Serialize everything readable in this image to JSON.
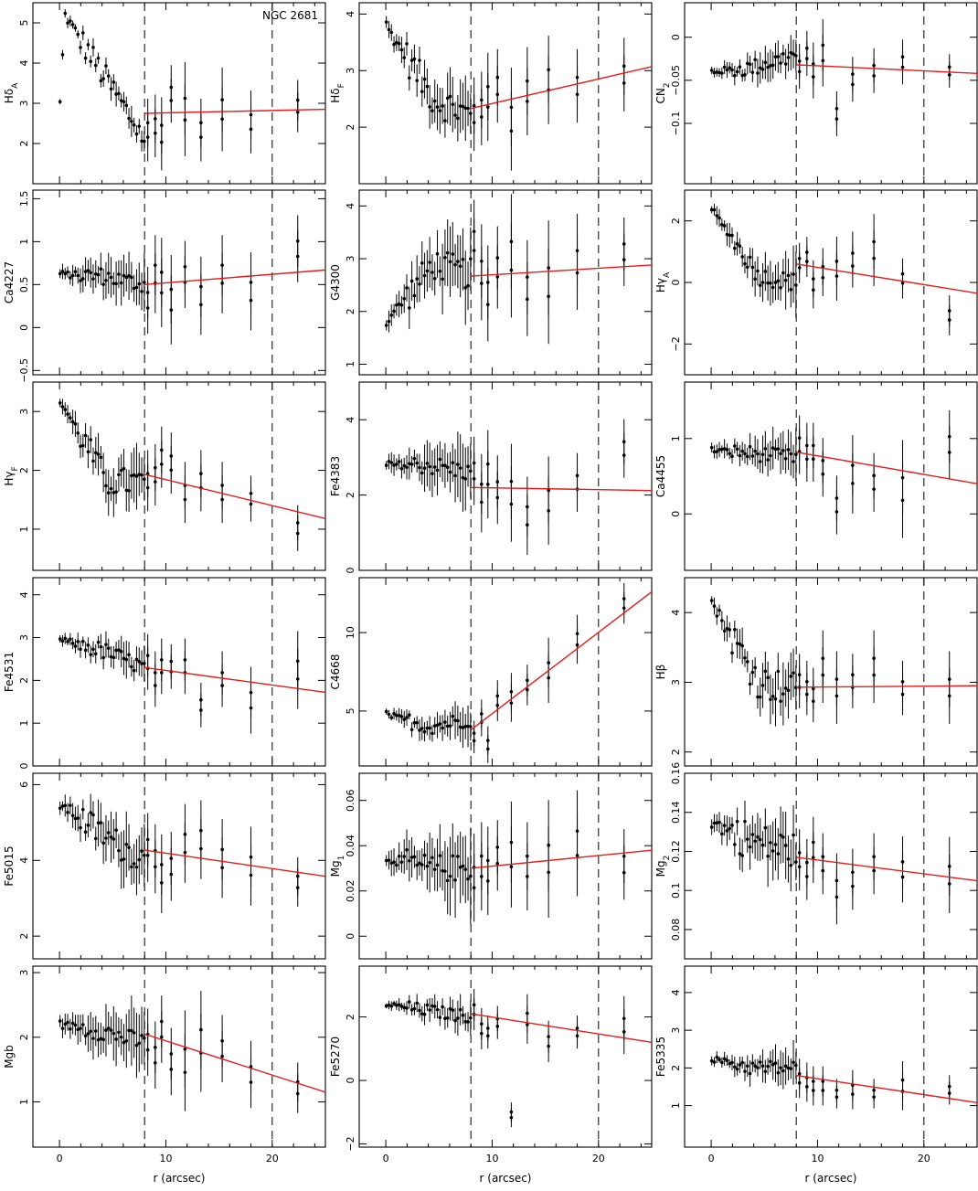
{
  "figure": {
    "object": "NGC 2681",
    "xlabel": "r (arcsec)",
    "xlim": [
      -2.5,
      25
    ],
    "xticks": [
      0,
      10,
      20
    ],
    "vlines": [
      8,
      20
    ],
    "colors": {
      "fit": "#e41a1c",
      "points": "#000000"
    }
  },
  "chart_data": [
    {
      "type": "scatter",
      "index": "Hδ_A",
      "ylabel": "HδA",
      "ylim": [
        1,
        5.5
      ],
      "yticks": [
        2,
        3,
        4,
        5
      ],
      "fit": {
        "x": [
          8,
          25
        ],
        "y": [
          2.75,
          2.85
        ]
      },
      "inner": {
        "start": 2.75,
        "mid": 5.2,
        "end": 2.1,
        "mid_r": 0.0,
        "noise": 0.35,
        "err": 0.25
      },
      "outer": {
        "r": [
          8.3,
          9,
          9.6,
          10.5,
          11.8,
          13.3,
          15.3,
          18,
          22.4
        ],
        "y": [
          2.3,
          2.4,
          2.2,
          3.2,
          2.8,
          2.3,
          2.8,
          2.5,
          2.9
        ],
        "e": [
          0.6,
          0.6,
          0.7,
          0.55,
          0.9,
          0.6,
          0.8,
          0.6,
          0.5
        ]
      }
    },
    {
      "type": "scatter",
      "index": "Hδ_F",
      "ylabel": "HδF",
      "ylim": [
        1,
        4.2
      ],
      "yticks": [
        2,
        3,
        4
      ],
      "fit": {
        "x": [
          8,
          25
        ],
        "y": [
          2.33,
          3.07
        ]
      },
      "inner": {
        "start": 3.8,
        "mid": 2.5,
        "end": 2.2,
        "mid_r": 4.5,
        "noise": 0.3,
        "err": 0.35
      },
      "outer": {
        "r": [
          8.3,
          9,
          9.6,
          10.5,
          11.8,
          13.3,
          15.3,
          18,
          22.4
        ],
        "y": [
          2.2,
          2.3,
          2.5,
          2.7,
          2.1,
          2.6,
          2.8,
          2.7,
          2.9
        ],
        "e": [
          0.5,
          0.5,
          0.6,
          0.5,
          0.7,
          0.6,
          0.6,
          0.5,
          0.5
        ]
      }
    },
    {
      "type": "scatter",
      "index": "CN_2",
      "ylabel": "CN2",
      "ylim": [
        -0.17,
        0.04
      ],
      "yticks": [
        -0.1,
        -0.05,
        0
      ],
      "fit": {
        "x": [
          8,
          25
        ],
        "y": [
          -0.032,
          -0.042
        ]
      },
      "inner": {
        "start": -0.04,
        "mid": -0.035,
        "end": -0.02,
        "mid_r": 4,
        "noise": 0.01,
        "err": 0.015
      },
      "outer": {
        "r": [
          8.3,
          9,
          9.6,
          10.5,
          11.8,
          13.3,
          15.3,
          18,
          22.4
        ],
        "y": [
          -0.035,
          -0.02,
          -0.04,
          -0.02,
          -0.09,
          -0.05,
          -0.04,
          -0.03,
          -0.04
        ],
        "e": [
          0.02,
          0.02,
          0.025,
          0.03,
          0.02,
          0.02,
          0.02,
          0.02,
          0.015
        ]
      }
    },
    {
      "type": "scatter",
      "index": "Ca4227",
      "ylabel": "Ca4227",
      "ylim": [
        -0.55,
        1.6
      ],
      "yticks": [
        -0.5,
        0,
        0.5,
        1,
        1.5
      ],
      "fit": {
        "x": [
          8,
          25
        ],
        "y": [
          0.5,
          0.67
        ]
      },
      "inner": {
        "start": 0.62,
        "mid": 0.6,
        "end": 0.5,
        "mid_r": 4,
        "noise": 0.1,
        "err": 0.2
      },
      "outer": {
        "r": [
          8.3,
          9,
          9.6,
          10.5,
          11.8,
          13.3,
          15.3,
          18,
          22.4
        ],
        "y": [
          0.3,
          0.6,
          0.5,
          0.3,
          0.6,
          0.35,
          0.6,
          0.4,
          0.9
        ],
        "e": [
          0.3,
          0.35,
          0.4,
          0.4,
          0.3,
          0.35,
          0.35,
          0.35,
          0.3
        ]
      }
    },
    {
      "type": "scatter",
      "index": "G4300",
      "ylabel": "G4300",
      "ylim": [
        0.8,
        4.3
      ],
      "yticks": [
        1,
        2,
        3,
        4
      ],
      "fit": {
        "x": [
          8,
          25
        ],
        "y": [
          2.67,
          2.88
        ]
      },
      "inner": {
        "start": 1.8,
        "mid": 2.9,
        "end": 2.7,
        "mid_r": 4.5,
        "noise": 0.3,
        "err": 0.5
      },
      "outer": {
        "r": [
          8.3,
          9,
          9.6,
          10.5,
          11.8,
          13.3,
          15.3,
          18,
          22.4
        ],
        "y": [
          3.3,
          2.7,
          2.3,
          2.8,
          3.0,
          2.4,
          2.5,
          2.9,
          3.1
        ],
        "e": [
          0.6,
          0.7,
          0.7,
          0.6,
          0.9,
          0.7,
          0.9,
          0.7,
          0.5
        ]
      }
    },
    {
      "type": "scatter",
      "index": "Hγ_A",
      "ylabel": "HγA",
      "ylim": [
        -3,
        3
      ],
      "yticks": [
        -2,
        0,
        2
      ],
      "fit": {
        "x": [
          8,
          25
        ],
        "y": [
          0.6,
          -0.35
        ]
      },
      "inner": {
        "start": 2.4,
        "mid": 0.2,
        "end": 0.0,
        "mid_r": 4.5,
        "noise": 0.3,
        "err": 0.6
      },
      "outer": {
        "r": [
          8.3,
          9,
          9.6,
          10.5,
          11.8,
          13.3,
          15.3,
          18,
          22.4
        ],
        "y": [
          0.6,
          0.8,
          -0.1,
          0.3,
          0.4,
          0.7,
          1.0,
          0.1,
          -1.1
        ],
        "e": [
          0.5,
          0.5,
          0.6,
          0.6,
          0.8,
          0.7,
          0.9,
          0.5,
          0.5
        ]
      }
    },
    {
      "type": "scatter",
      "index": "Hγ_F",
      "ylabel": "HγF",
      "ylim": [
        0.3,
        3.5
      ],
      "yticks": [
        1,
        2,
        3
      ],
      "fit": {
        "x": [
          8,
          25
        ],
        "y": [
          1.93,
          1.18
        ]
      },
      "inner": {
        "start": 3.2,
        "mid": 1.8,
        "end": 1.8,
        "mid_r": 4.5,
        "noise": 0.25,
        "err": 0.35
      },
      "outer": {
        "r": [
          8.3,
          9,
          9.6,
          10.5,
          11.8,
          13.3,
          15.3,
          18,
          22.4
        ],
        "y": [
          1.8,
          1.9,
          2.2,
          2.1,
          1.6,
          1.8,
          1.6,
          1.5,
          1.0
        ],
        "e": [
          0.4,
          0.4,
          0.4,
          0.4,
          0.4,
          0.4,
          0.4,
          0.3,
          0.3
        ]
      }
    },
    {
      "type": "scatter",
      "index": "Fe4383",
      "ylabel": "Fe4383",
      "ylim": [
        0,
        5
      ],
      "yticks": [
        0,
        2,
        4
      ],
      "fit": {
        "x": [
          8,
          25
        ],
        "y": [
          2.2,
          2.12
        ]
      },
      "inner": {
        "start": 2.8,
        "mid": 2.8,
        "end": 2.6,
        "mid_r": 4,
        "noise": 0.25,
        "err": 0.6
      },
      "outer": {
        "r": [
          8.3,
          9,
          9.6,
          10.5,
          11.8,
          13.3,
          15.3,
          18,
          22.4
        ],
        "y": [
          2.6,
          2.0,
          2.5,
          2.1,
          2.0,
          1.4,
          1.8,
          2.3,
          3.2
        ],
        "e": [
          0.7,
          0.8,
          0.9,
          0.7,
          1.0,
          0.8,
          0.9,
          0.6,
          0.6
        ]
      }
    },
    {
      "type": "scatter",
      "index": "Ca4455",
      "ylabel": "Ca4455",
      "ylim": [
        -0.75,
        1.75
      ],
      "yticks": [
        0,
        1
      ],
      "fit": {
        "x": [
          8,
          25
        ],
        "y": [
          0.82,
          0.4
        ]
      },
      "inner": {
        "start": 0.85,
        "mid": 0.8,
        "end": 0.75,
        "mid_r": 4,
        "noise": 0.1,
        "err": 0.2
      },
      "outer": {
        "r": [
          8.3,
          9,
          9.6,
          10.5,
          11.8,
          13.3,
          15.3,
          18,
          22.4
        ],
        "y": [
          0.9,
          0.8,
          0.8,
          0.6,
          0.1,
          0.5,
          0.4,
          0.3,
          0.9
        ],
        "e": [
          0.3,
          0.3,
          0.3,
          0.3,
          0.3,
          0.4,
          0.3,
          0.5,
          0.35
        ]
      }
    },
    {
      "type": "scatter",
      "index": "Fe4531",
      "ylabel": "Fe4531",
      "ylim": [
        0,
        4.4
      ],
      "yticks": [
        0,
        1,
        2,
        3,
        4
      ],
      "fit": {
        "x": [
          8,
          25
        ],
        "y": [
          2.3,
          1.72
        ]
      },
      "inner": {
        "start": 2.95,
        "mid": 2.7,
        "end": 2.3,
        "mid_r": 4,
        "noise": 0.2,
        "err": 0.3
      },
      "outer": {
        "r": [
          8.3,
          9,
          9.6,
          10.5,
          11.8,
          13.3,
          15.3,
          18,
          22.4
        ],
        "y": [
          2.4,
          2.0,
          2.3,
          2.3,
          2.3,
          1.4,
          2.0,
          1.5,
          2.2
        ],
        "e": [
          0.5,
          0.5,
          0.5,
          0.4,
          0.5,
          0.4,
          0.5,
          0.6,
          0.7
        ]
      }
    },
    {
      "type": "scatter",
      "index": "C4668",
      "ylabel": "C4668",
      "ylim": [
        1.5,
        13.5
      ],
      "yticks": [
        5,
        10
      ],
      "fit": {
        "x": [
          8,
          25
        ],
        "y": [
          3.8,
          12.6
        ]
      },
      "inner": {
        "start": 4.8,
        "mid": 4.0,
        "end": 4.5,
        "mid_r": 4,
        "noise": 0.5,
        "err": 0.8
      },
      "outer": {
        "r": [
          8.3,
          9,
          9.6,
          10.5,
          11.8,
          13.3,
          15.3,
          18,
          22.4
        ],
        "y": [
          3.3,
          4.5,
          2.8,
          5.6,
          5.8,
          6.6,
          7.5,
          9.5,
          11.8
        ],
        "e": [
          0.8,
          0.9,
          0.9,
          1.0,
          1.2,
          1.0,
          1.6,
          1.2,
          1.0
        ]
      }
    },
    {
      "type": "scatter",
      "index": "Hβ",
      "ylabel": "Hβ",
      "ylim": [
        1.8,
        4.5
      ],
      "yticks": [
        2,
        3,
        4
      ],
      "fit": {
        "x": [
          8,
          25
        ],
        "y": [
          2.93,
          2.95
        ]
      },
      "inner": {
        "start": 4.15,
        "mid": 3.0,
        "end": 2.9,
        "mid_r": 4.5,
        "noise": 0.25,
        "err": 0.3
      },
      "outer": {
        "r": [
          8.3,
          9,
          9.6,
          10.5,
          11.8,
          13.3,
          15.3,
          18,
          22.4
        ],
        "y": [
          3.0,
          2.9,
          2.8,
          3.2,
          2.9,
          3.0,
          3.2,
          2.9,
          2.9
        ],
        "e": [
          0.3,
          0.3,
          0.3,
          0.4,
          0.4,
          0.3,
          0.4,
          0.3,
          0.4
        ]
      }
    },
    {
      "type": "scatter",
      "index": "Fe5015",
      "ylabel": "Fe5015",
      "ylim": [
        1.4,
        6.3
      ],
      "yticks": [
        2,
        4,
        6
      ],
      "fit": {
        "x": [
          8,
          25
        ],
        "y": [
          4.27,
          3.58
        ]
      },
      "inner": {
        "start": 5.5,
        "mid": 4.6,
        "end": 4.0,
        "mid_r": 4.5,
        "noise": 0.4,
        "err": 0.6
      },
      "outer": {
        "r": [
          8.3,
          9,
          9.6,
          10.5,
          11.8,
          13.3,
          15.3,
          18,
          22.4
        ],
        "y": [
          4.3,
          4.0,
          3.6,
          3.8,
          4.4,
          4.5,
          4.0,
          3.8,
          3.4
        ],
        "e": [
          0.7,
          0.7,
          0.8,
          0.7,
          0.8,
          0.8,
          0.8,
          0.8,
          0.5
        ]
      }
    },
    {
      "type": "scatter",
      "index": "Mg_1",
      "ylabel": "Mg1",
      "ylim": [
        -0.01,
        0.072
      ],
      "yticks": [
        0,
        0.02,
        0.04,
        0.06
      ],
      "fit": {
        "x": [
          8,
          25
        ],
        "y": [
          0.03,
          0.038
        ]
      },
      "inner": {
        "start": 0.035,
        "mid": 0.03,
        "end": 0.03,
        "mid_r": 4,
        "noise": 0.006,
        "err": 0.012
      },
      "outer": {
        "r": [
          8.3,
          9,
          9.6,
          10.5,
          11.8,
          13.3,
          15.3,
          18,
          22.4
        ],
        "y": [
          0.025,
          0.03,
          0.028,
          0.035,
          0.035,
          0.03,
          0.033,
          0.04,
          0.031
        ],
        "e": [
          0.015,
          0.015,
          0.015,
          0.012,
          0.018,
          0.015,
          0.02,
          0.018,
          0.012
        ]
      }
    },
    {
      "type": "scatter",
      "index": "Mg_2",
      "ylabel": "Mg2",
      "ylim": [
        0.065,
        0.16
      ],
      "yticks": [
        0.08,
        0.1,
        0.12,
        0.14,
        0.16
      ],
      "fit": {
        "x": [
          8,
          25
        ],
        "y": [
          0.117,
          0.105
        ]
      },
      "inner": {
        "start": 0.135,
        "mid": 0.125,
        "end": 0.12,
        "mid_r": 4,
        "noise": 0.01,
        "err": 0.012
      },
      "outer": {
        "r": [
          8.3,
          9,
          9.6,
          10.5,
          11.8,
          13.3,
          15.3,
          18,
          22.4
        ],
        "y": [
          0.115,
          0.11,
          0.12,
          0.113,
          0.1,
          0.105,
          0.113,
          0.11,
          0.107
        ],
        "e": [
          0.012,
          0.012,
          0.013,
          0.012,
          0.014,
          0.012,
          0.012,
          0.013,
          0.015
        ]
      }
    },
    {
      "type": "scatter",
      "index": "Mgb",
      "ylabel": "Mgb",
      "ylim": [
        0.3,
        3.1
      ],
      "yticks": [
        1,
        2,
        3
      ],
      "fit": {
        "x": [
          8,
          25
        ],
        "y": [
          2.05,
          1.15
        ]
      },
      "inner": {
        "start": 2.2,
        "mid": 2.1,
        "end": 1.9,
        "mid_r": 4,
        "noise": 0.15,
        "err": 0.35
      },
      "outer": {
        "r": [
          8.3,
          9,
          9.6,
          10.5,
          11.8,
          13.3,
          15.3,
          18,
          22.4
        ],
        "y": [
          1.9,
          1.7,
          2.1,
          1.6,
          1.6,
          1.9,
          1.8,
          1.4,
          1.2
        ],
        "e": [
          0.4,
          0.4,
          0.4,
          0.4,
          0.6,
          0.6,
          0.4,
          0.4,
          0.3
        ]
      }
    },
    {
      "type": "scatter",
      "index": "Fe5270",
      "ylabel": "Fe5270",
      "ylim": [
        -2.1,
        3.6
      ],
      "yticks": [
        -2,
        0,
        2
      ],
      "fit": {
        "x": [
          8,
          25
        ],
        "y": [
          2.1,
          1.2
        ]
      },
      "inner": {
        "start": 2.4,
        "mid": 2.2,
        "end": 2.0,
        "mid_r": 4,
        "noise": 0.2,
        "err": 0.35
      },
      "outer": {
        "r": [
          8.3,
          9,
          9.6,
          10.5,
          11.8,
          13.3,
          15.3,
          18,
          22.4
        ],
        "y": [
          2.2,
          1.6,
          1.5,
          1.8,
          -1.1,
          1.9,
          1.2,
          1.5,
          1.7
        ],
        "e": [
          0.5,
          0.5,
          0.4,
          0.4,
          0.3,
          0.6,
          0.5,
          0.4,
          0.7
        ]
      }
    },
    {
      "type": "scatter",
      "index": "Fe5335",
      "ylabel": "Fe5335",
      "ylim": [
        -0.1,
        4.7
      ],
      "yticks": [
        1,
        2,
        3,
        4
      ],
      "fit": {
        "x": [
          8,
          25
        ],
        "y": [
          1.8,
          1.08
        ]
      },
      "inner": {
        "start": 2.25,
        "mid": 2.0,
        "end": 2.0,
        "mid_r": 4,
        "noise": 0.2,
        "err": 0.35
      },
      "outer": {
        "r": [
          8.3,
          9,
          9.6,
          10.5,
          11.8,
          13.3,
          15.3,
          18,
          22.4
        ],
        "y": [
          1.7,
          1.6,
          1.5,
          1.5,
          1.3,
          1.4,
          1.3,
          1.5,
          1.4
        ],
        "e": [
          0.4,
          0.4,
          0.4,
          0.4,
          0.3,
          0.4,
          0.3,
          0.5,
          0.3
        ]
      }
    }
  ]
}
